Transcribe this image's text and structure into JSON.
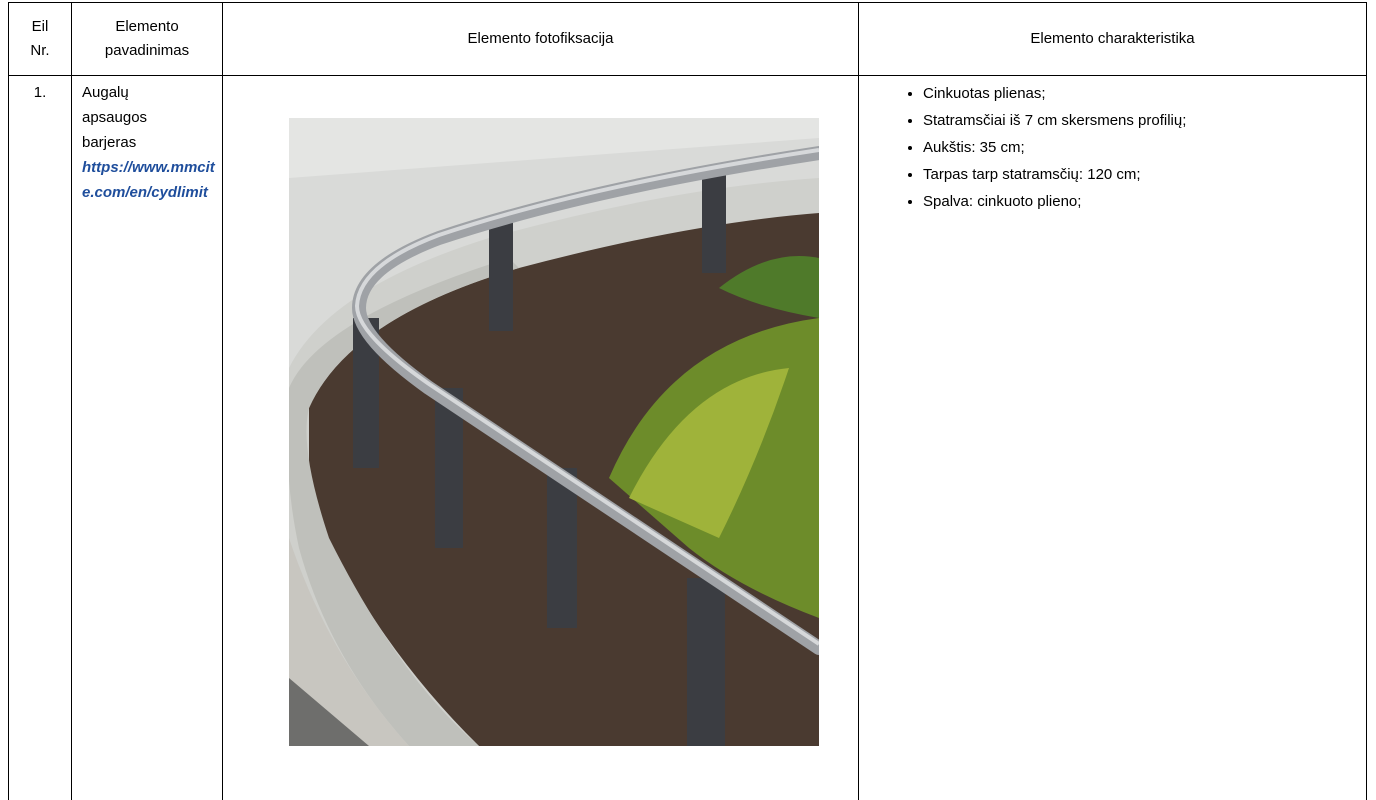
{
  "table": {
    "header": [
      "Eil Nr.",
      "Elemento pavadinimas",
      "Elemento fotofiksacija",
      "Elemento charakteristika"
    ],
    "rows": [
      {
        "number": "1.",
        "name": "Augalų apsaugos barjeras",
        "link": "https://www.mmcite.com/en/cydlimit",
        "characteristics": [
          "Cinkuotas plienas;",
          "Statramsčiai iš 7 cm skersmens profilių;",
          "Aukštis: 35 cm;",
          "Tarpas tarp statramsčių: 120 cm;",
          "Spalva: cinkuoto plieno;"
        ]
      }
    ]
  }
}
